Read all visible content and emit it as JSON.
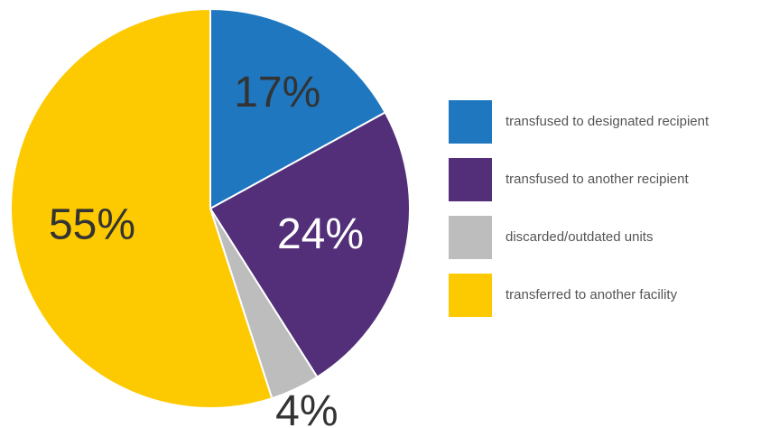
{
  "chart_data": {
    "type": "pie",
    "categories": [
      "transfused to designated recipient",
      "transfused to another recipient",
      "discarded/outdated units",
      "transferred to another facility"
    ],
    "values": [
      17,
      24,
      4,
      55
    ],
    "value_labels": [
      "17%",
      "24%",
      "4%",
      "55%"
    ],
    "colors": [
      "#1f77c0",
      "#522f78",
      "#bdbdbd",
      "#fdc900"
    ]
  }
}
